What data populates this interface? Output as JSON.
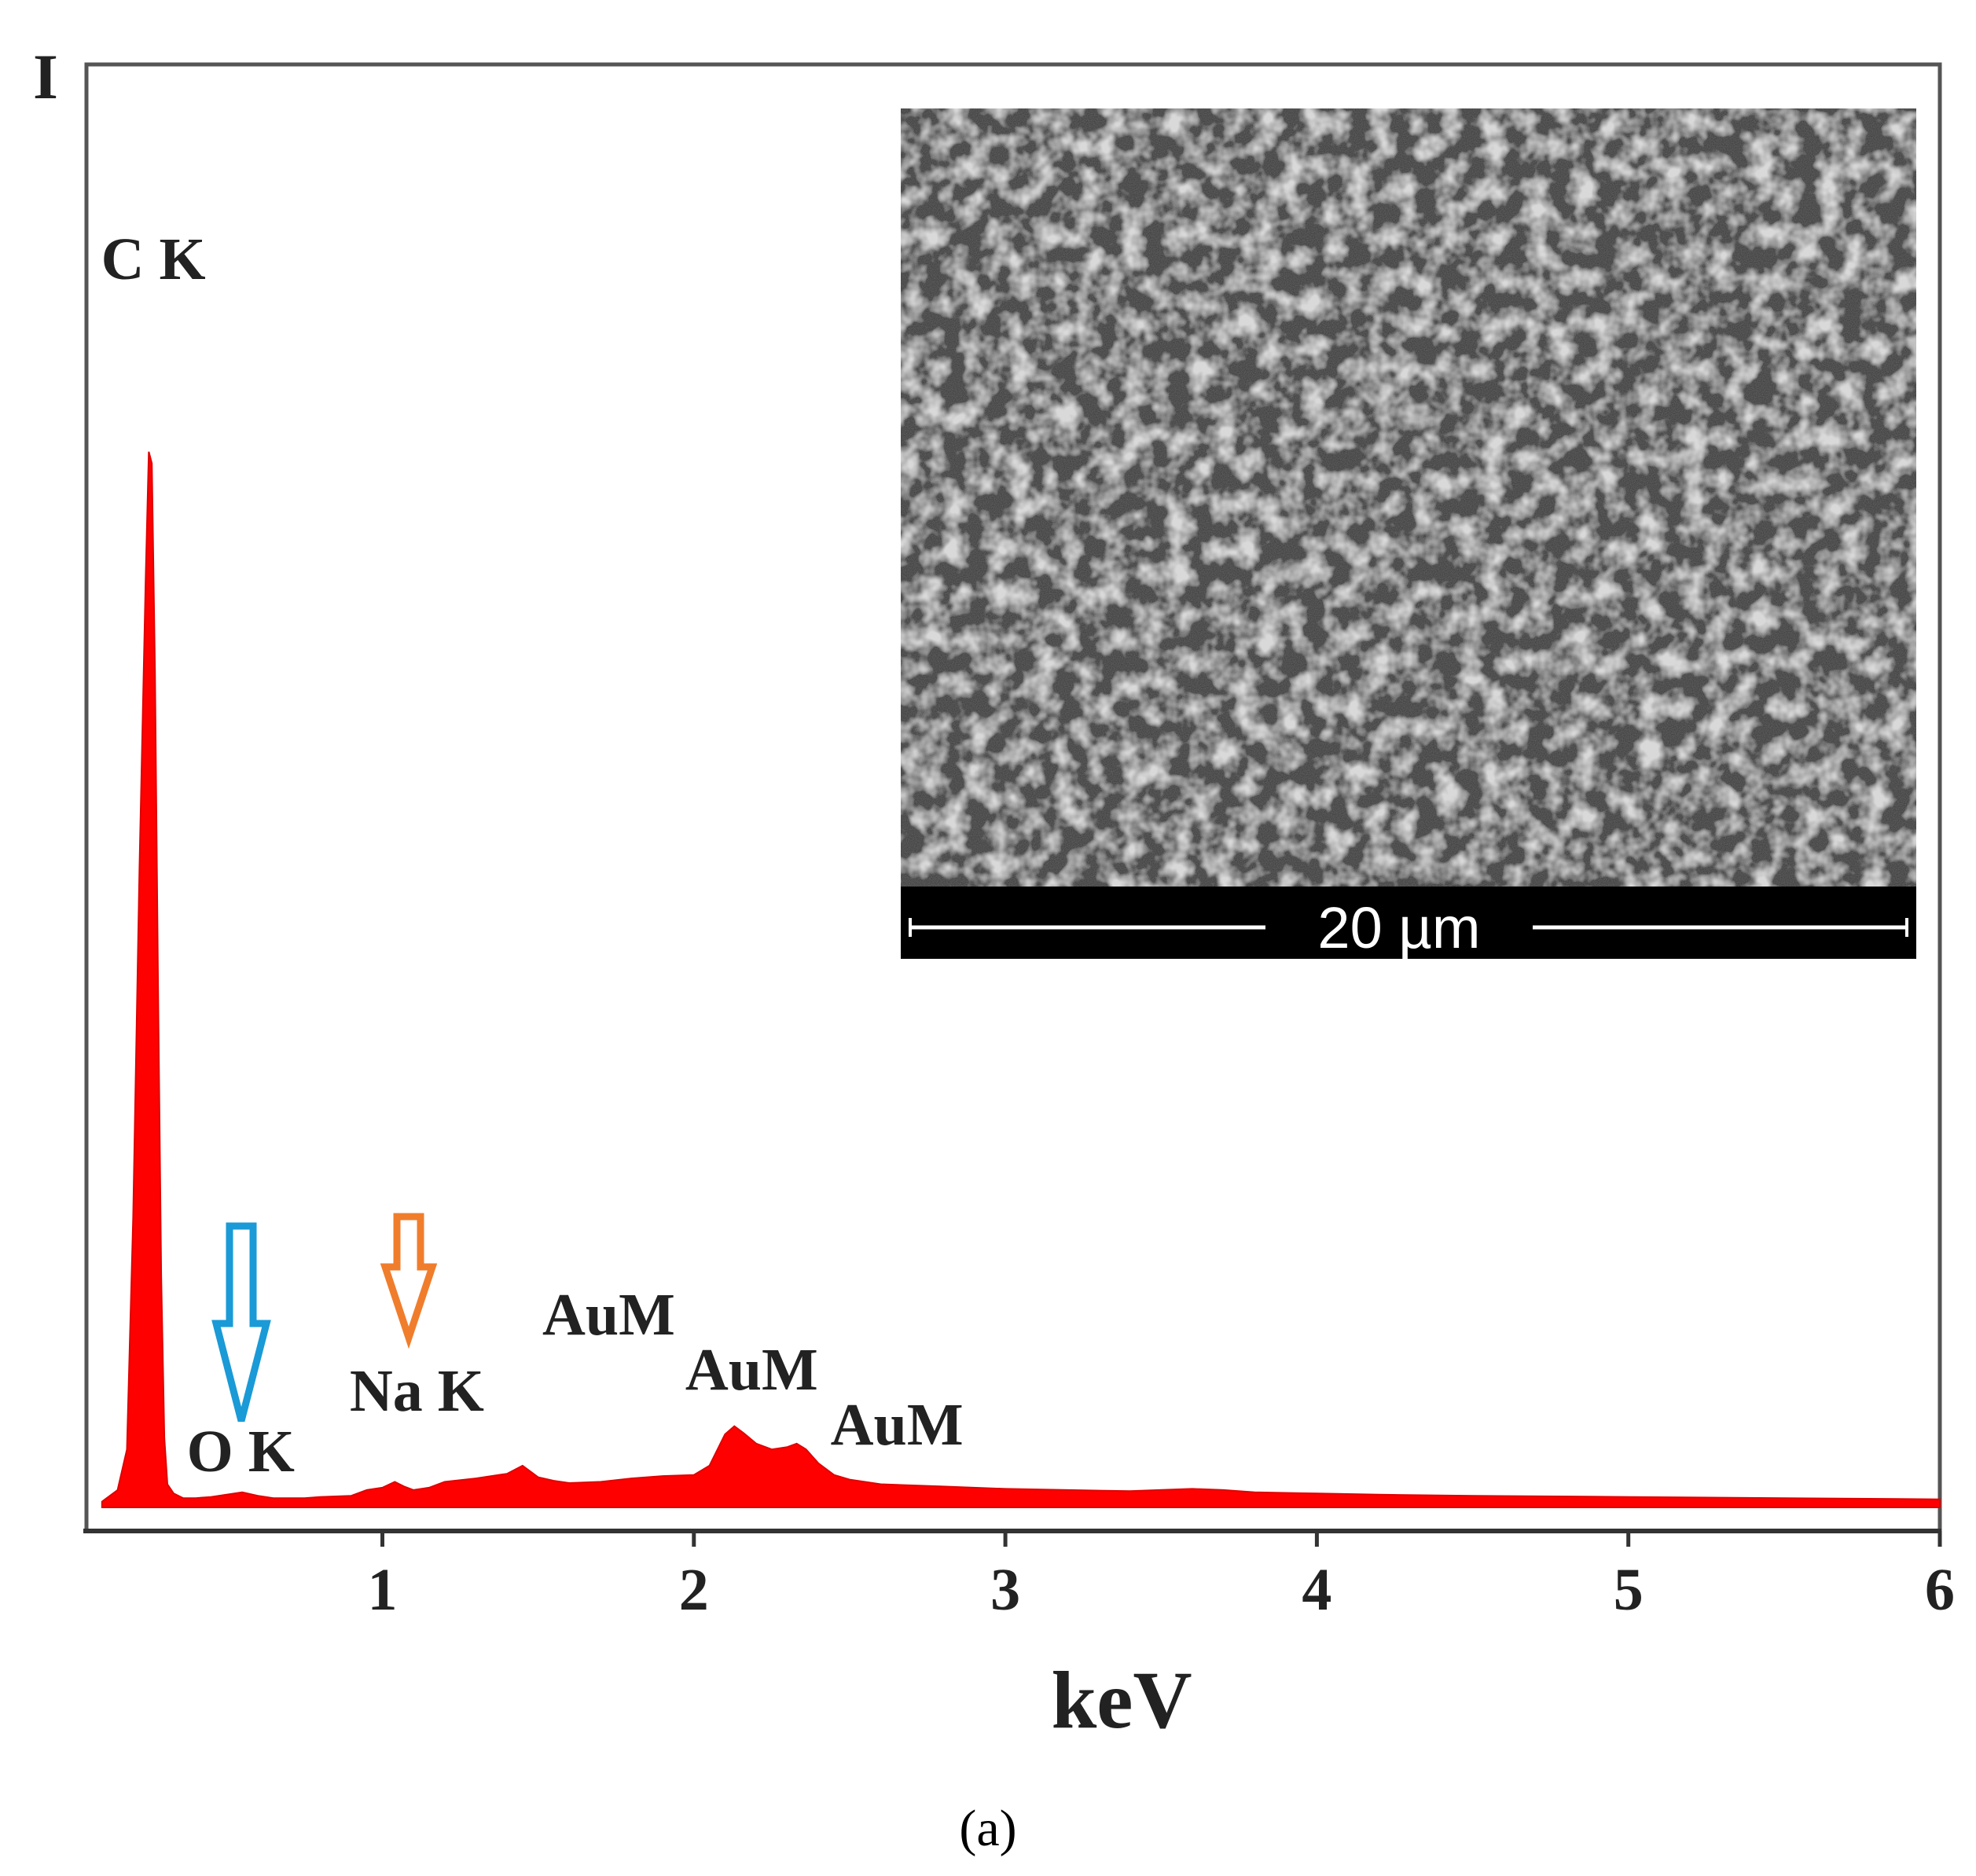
{
  "chart_data": {
    "type": "area",
    "title": "",
    "ylabel": "I",
    "xlabel": "keV",
    "xlim": [
      0.05,
      6.0
    ],
    "ylim": [
      0,
      100
    ],
    "xticks": [
      "1",
      "2",
      "3",
      "4",
      "5",
      "6"
    ],
    "grid": false,
    "series": [
      {
        "color": "#ff0000",
        "x": [
          0.1,
          0.15,
          0.18,
          0.2,
          0.22,
          0.24,
          0.25,
          0.26,
          0.27,
          0.28,
          0.29,
          0.3,
          0.31,
          0.33,
          0.36,
          0.4,
          0.45,
          0.5,
          0.55,
          0.6,
          0.65,
          0.7,
          0.75,
          0.8,
          0.9,
          0.95,
          1.0,
          1.04,
          1.07,
          1.1,
          1.15,
          1.2,
          1.3,
          1.4,
          1.45,
          1.48,
          1.5,
          1.55,
          1.6,
          1.7,
          1.8,
          1.9,
          2.0,
          2.05,
          2.1,
          2.13,
          2.16,
          2.2,
          2.25,
          2.3,
          2.33,
          2.36,
          2.4,
          2.45,
          2.5,
          2.6,
          2.8,
          3.0,
          3.2,
          3.4,
          3.6,
          3.7,
          3.8,
          4.0,
          4.2,
          4.5,
          5.0,
          5.5,
          6.0
        ],
        "y": [
          0.5,
          1.5,
          5,
          25,
          55,
          80,
          91,
          90,
          72,
          45,
          20,
          6,
          2,
          1.2,
          0.8,
          0.8,
          0.9,
          1.1,
          1.3,
          1.0,
          0.8,
          0.8,
          0.8,
          0.9,
          1.0,
          1.5,
          1.7,
          2.2,
          1.8,
          1.5,
          1.7,
          2.2,
          2.5,
          2.9,
          3.6,
          3.0,
          2.6,
          2.3,
          2.1,
          2.2,
          2.5,
          2.7,
          2.8,
          3.6,
          6.3,
          7.0,
          6.4,
          5.5,
          5.0,
          5.2,
          5.5,
          5.0,
          3.8,
          2.8,
          2.4,
          2.0,
          1.8,
          1.6,
          1.5,
          1.4,
          1.6,
          1.5,
          1.3,
          1.2,
          1.1,
          1.0,
          0.9,
          0.8,
          0.7
        ]
      }
    ],
    "annotations": [
      {
        "text": "C K",
        "x": 0.27
      },
      {
        "text": "O K",
        "x": 0.52
      },
      {
        "text": "Na K",
        "x": 1.04
      },
      {
        "text": "AuM",
        "x": 1.55
      },
      {
        "text": "AuM",
        "x": 2.13
      },
      {
        "text": "AuM",
        "x": 2.45
      }
    ],
    "markers": [
      {
        "marks": "O K",
        "color": "#1a9ad6"
      },
      {
        "marks": "Na K",
        "color": "#f07d2c"
      }
    ],
    "inset": {
      "kind": "micrograph",
      "scale_bar": "20 µm"
    },
    "caption": "(a)"
  }
}
